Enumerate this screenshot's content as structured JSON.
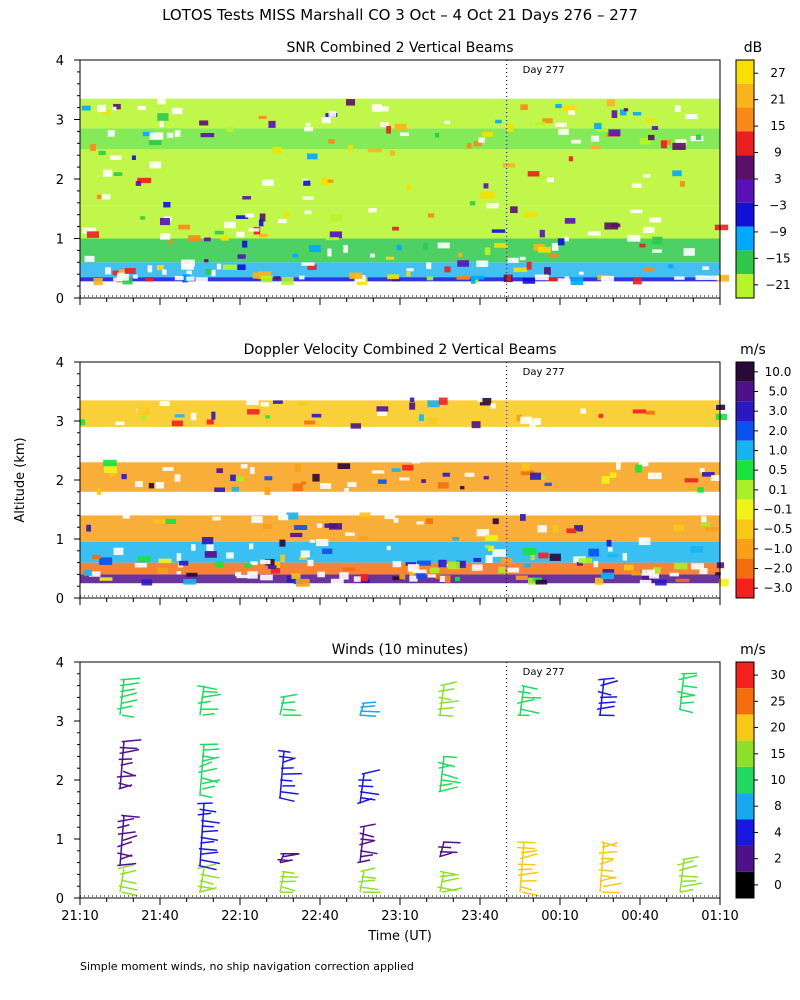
{
  "figure": {
    "title": "LOTOS Tests MISS Marshall CO   3 Oct –  4 Oct 21 Days 276 – 277",
    "ylabel": "Altitude (km)",
    "xlabel": "Time (UT)",
    "footnote": "Simple moment winds, no ship navigation correction applied",
    "day_marker": "Day 277"
  },
  "chart_data": [
    {
      "type": "heatmap",
      "title": "SNR Combined 2 Vertical Beams",
      "ylim": [
        0,
        4
      ],
      "yticks": [
        "0",
        "1",
        "2",
        "3",
        "4"
      ],
      "colorbar_unit": "dB",
      "colorbar_labels": [
        "27",
        "21",
        "15",
        "9",
        "3",
        "−3",
        "−9",
        "−15",
        "−21"
      ],
      "colorbar_colors": [
        "#f7e000",
        "#f9b41c",
        "#f98a1a",
        "#e82020",
        "#5a0f68",
        "#5a10b8",
        "#1010d8",
        "#00a8ff",
        "#2ec94a",
        "#b6f52a"
      ],
      "bands": [
        {
          "y0": 0.28,
          "y1": 0.35,
          "color": "#1010d8"
        },
        {
          "y0": 0.35,
          "y1": 0.6,
          "color": "#22b4f0"
        },
        {
          "y0": 0.6,
          "y1": 1.0,
          "color": "#2ec94a"
        },
        {
          "y0": 1.0,
          "y1": 1.55,
          "color": "#b6f52a"
        },
        {
          "y0": 1.55,
          "y1": 2.5,
          "color": "#b6f52a"
        },
        {
          "y0": 2.5,
          "y1": 2.85,
          "color": "#6fe63a"
        },
        {
          "y0": 2.85,
          "y1": 3.35,
          "color": "#b6f52a"
        }
      ]
    },
    {
      "type": "heatmap",
      "title": "Doppler Velocity Combined 2 Vertical Beams",
      "ylim": [
        0,
        4
      ],
      "yticks": [
        "0",
        "1",
        "2",
        "3",
        "4"
      ],
      "colorbar_unit": "m/s",
      "colorbar_labels": [
        "10.0",
        "5.0",
        "3.0",
        "2.0",
        "1.0",
        "0.5",
        "0.1",
        "−0.1",
        "−0.5",
        "−1.0",
        "−2.0",
        "−3.0"
      ],
      "colorbar_colors": [
        "#2a0838",
        "#50108c",
        "#2a18c0",
        "#0a50f0",
        "#18b4f0",
        "#18e23c",
        "#a8f028",
        "#f2f21a",
        "#f8c818",
        "#f8a018",
        "#f46e10",
        "#f42020"
      ],
      "bands": [
        {
          "y0": 0.25,
          "y1": 0.4,
          "color": "#50108c"
        },
        {
          "y0": 0.4,
          "y1": 0.6,
          "color": "#f46e10"
        },
        {
          "y0": 0.6,
          "y1": 0.95,
          "color": "#18b4f0"
        },
        {
          "y0": 0.95,
          "y1": 1.4,
          "color": "#f8a018"
        },
        {
          "y0": 1.8,
          "y1": 2.3,
          "color": "#f8a018"
        },
        {
          "y0": 2.9,
          "y1": 3.35,
          "color": "#f8c818"
        }
      ]
    },
    {
      "type": "scatter",
      "title": "Winds (10 minutes)",
      "ylim": [
        0,
        4
      ],
      "yticks": [
        "0",
        "1",
        "2",
        "3",
        "4"
      ],
      "x_ticks": [
        "21:10",
        "21:40",
        "22:10",
        "22:40",
        "23:10",
        "23:40",
        "00:10",
        "00:40",
        "01:10"
      ],
      "colorbar_unit": "m/s",
      "colorbar_labels": [
        "30",
        "25",
        "20",
        "15",
        "10",
        "8",
        "4",
        "2",
        "0"
      ],
      "colorbar_colors": [
        "#f42020",
        "#f46e10",
        "#f8c818",
        "#8ee02a",
        "#22d860",
        "#18a8f0",
        "#1818e0",
        "#50108c",
        "#000000"
      ],
      "profiles": [
        {
          "t": 15,
          "segments": [
            [
              0.1,
              0.5,
              "#8ee02a"
            ],
            [
              0.55,
              1.4,
              "#50108c"
            ],
            [
              1.85,
              2.65,
              "#50108c"
            ],
            [
              3.1,
              3.7,
              "#22d860"
            ]
          ]
        },
        {
          "t": 45,
          "segments": [
            [
              0.1,
              0.5,
              "#8ee02a"
            ],
            [
              0.55,
              1.6,
              "#1818e0"
            ],
            [
              1.75,
              2.6,
              "#22d860"
            ],
            [
              3.1,
              3.6,
              "#22d860"
            ]
          ]
        },
        {
          "t": 75,
          "segments": [
            [
              0.1,
              0.45,
              "#8ee02a"
            ],
            [
              0.6,
              0.75,
              "#50108c"
            ],
            [
              1.7,
              2.5,
              "#1818e0"
            ],
            [
              3.1,
              3.4,
              "#22d860"
            ]
          ]
        },
        {
          "t": 105,
          "segments": [
            [
              0.1,
              0.45,
              "#8ee02a"
            ],
            [
              0.6,
              1.2,
              "#50108c"
            ],
            [
              1.6,
              2.1,
              "#1818e0"
            ],
            [
              3.1,
              3.3,
              "#18a8f0"
            ]
          ]
        },
        {
          "t": 135,
          "segments": [
            [
              0.1,
              0.45,
              "#8ee02a"
            ],
            [
              0.7,
              0.95,
              "#50108c"
            ],
            [
              1.8,
              2.4,
              "#22d860"
            ],
            [
              3.1,
              3.6,
              "#8ee02a"
            ]
          ]
        },
        {
          "t": 165,
          "segments": [
            [
              0.1,
              0.95,
              "#f8c818"
            ],
            [
              3.1,
              3.6,
              "#22d860"
            ]
          ]
        },
        {
          "t": 195,
          "segments": [
            [
              0.1,
              0.95,
              "#f8c818"
            ],
            [
              3.1,
              3.7,
              "#1818e0"
            ]
          ]
        },
        {
          "t": 225,
          "segments": [
            [
              0.1,
              0.65,
              "#8ee02a"
            ],
            [
              3.2,
              3.8,
              "#22d860"
            ]
          ]
        }
      ]
    }
  ],
  "colors": {
    "background": "#ffffff",
    "axis": "#000000"
  }
}
